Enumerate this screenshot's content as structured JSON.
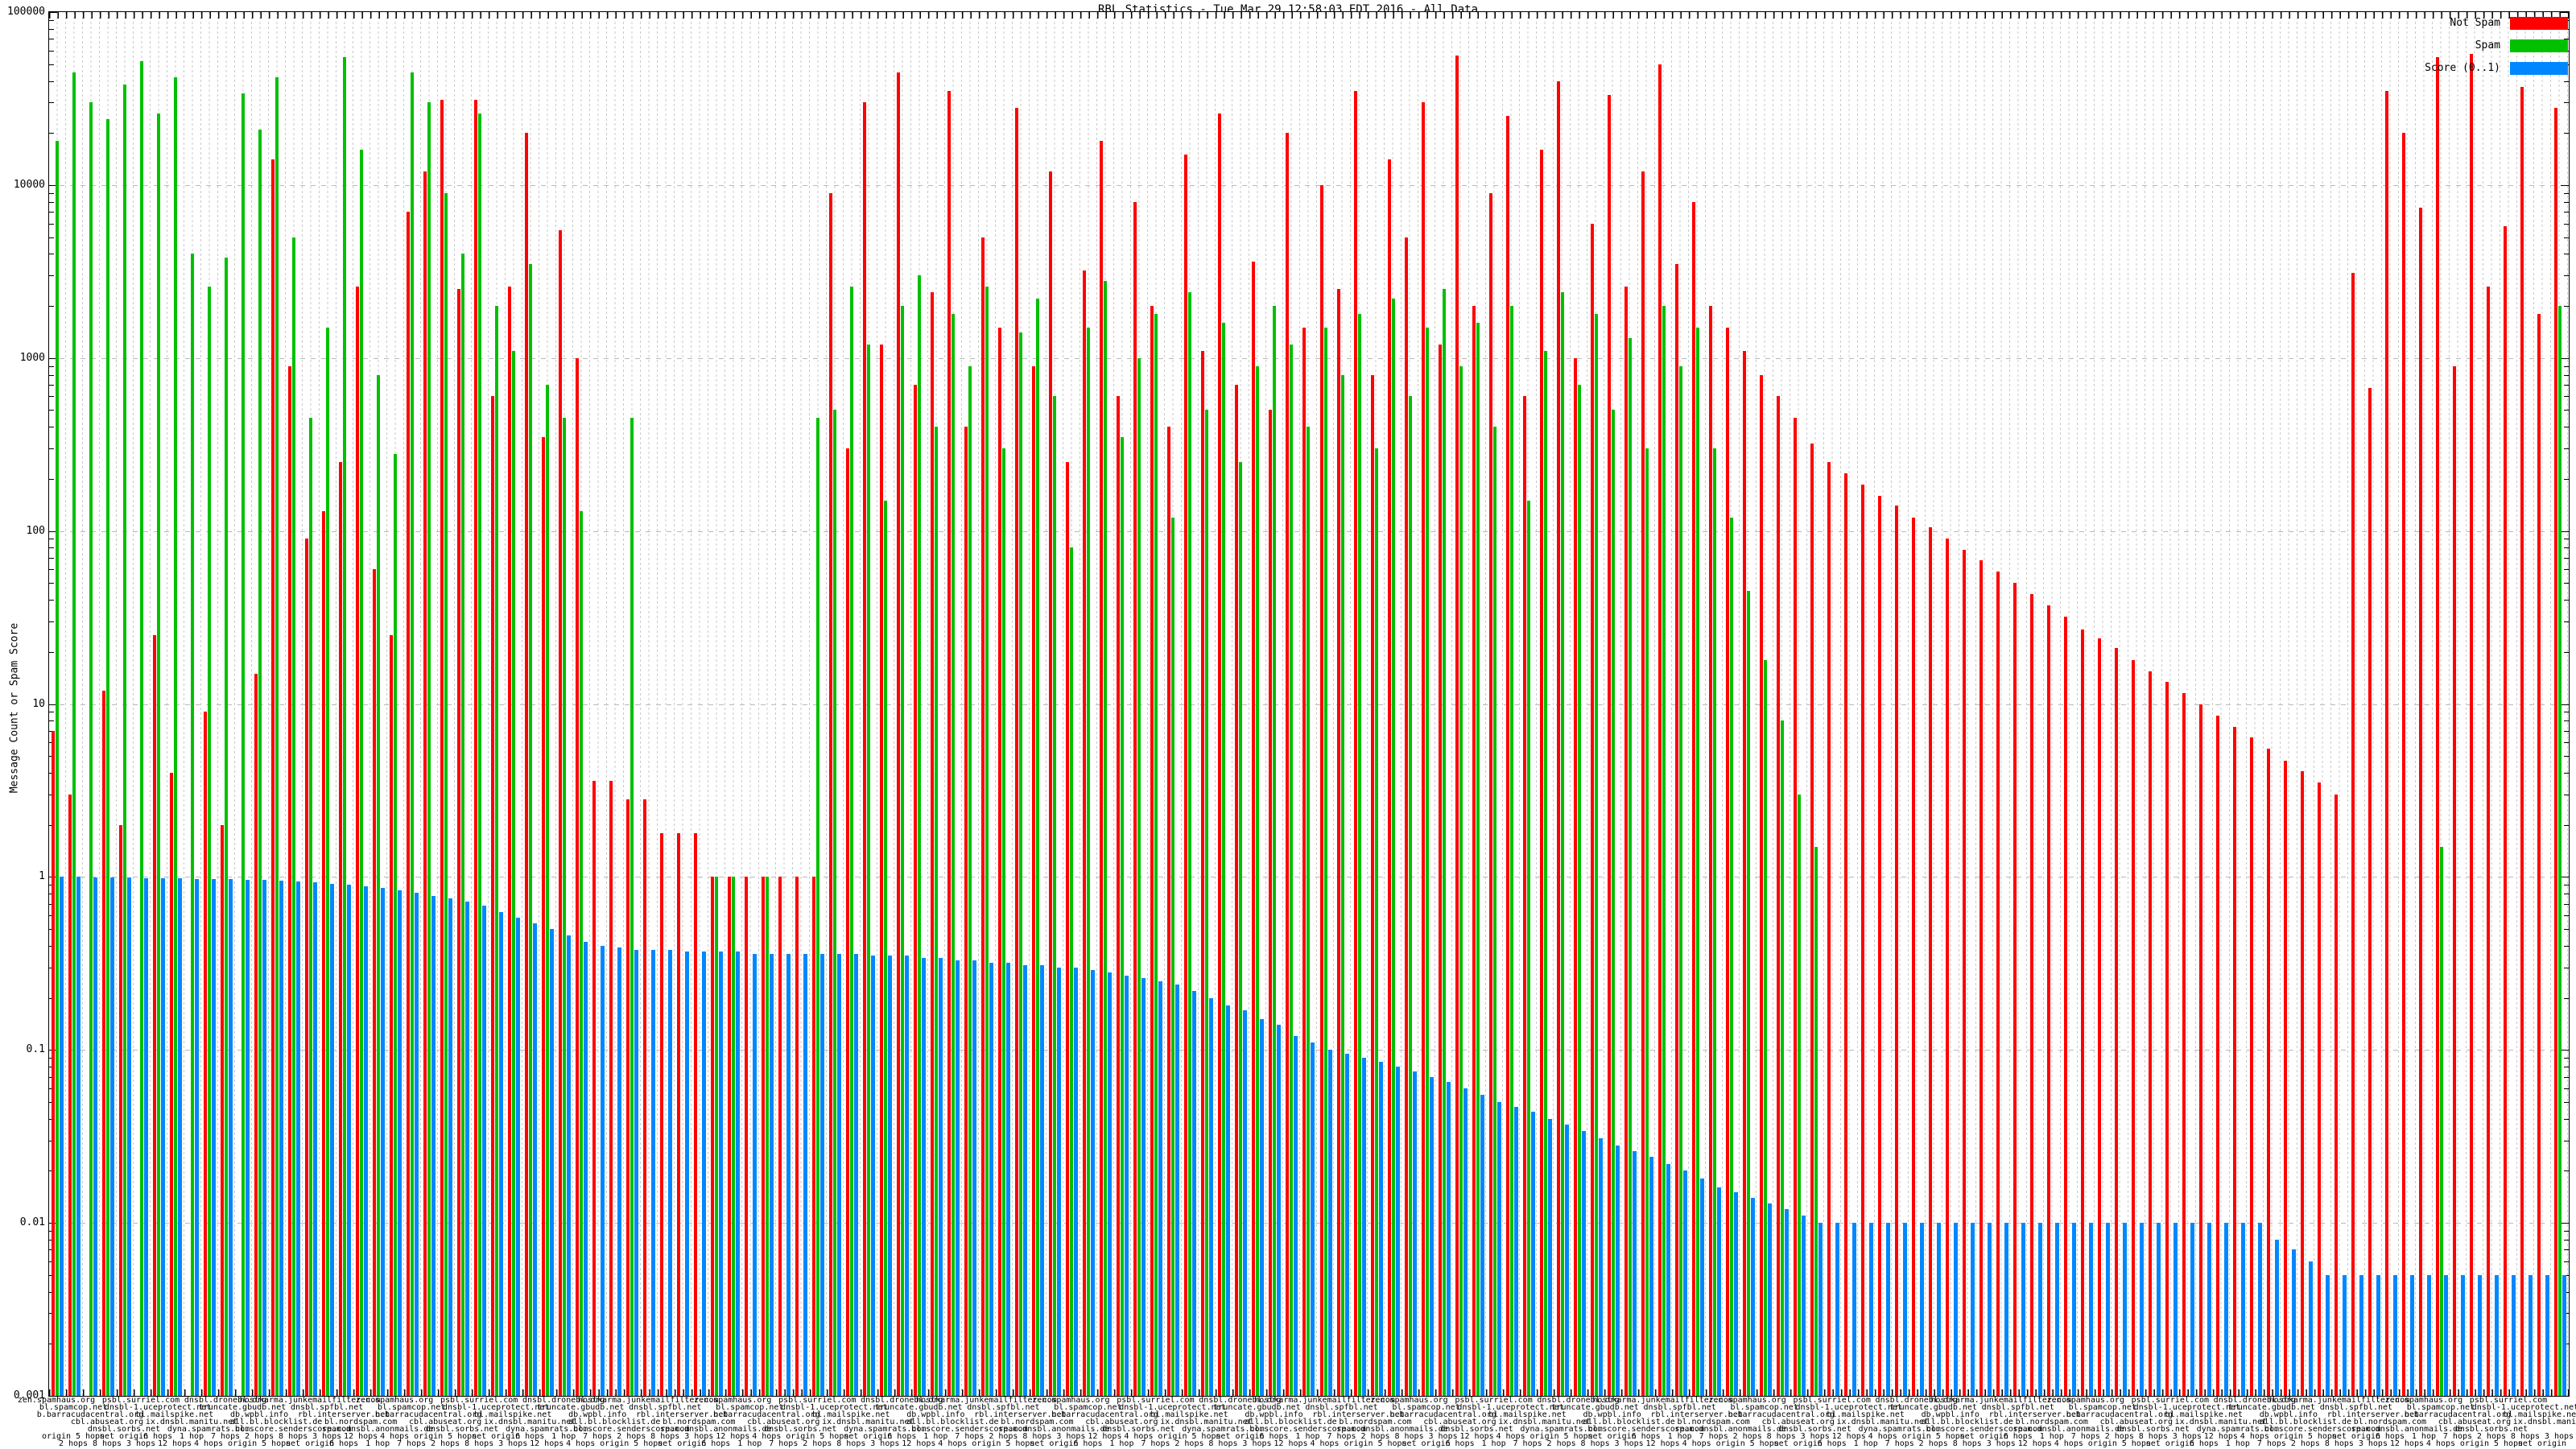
{
  "title": "RBL Statistics - Tue Mar 29 12:58:03 EDT 2016 - All Data",
  "y_axis": {
    "label": "Message Count or Spam Score",
    "ticks": [
      "100000",
      "10000",
      "1000",
      "100",
      "10",
      "1",
      "0.1",
      "0.01",
      "0.001"
    ],
    "tick_values": [
      100000,
      10000,
      1000,
      100,
      10,
      1,
      0.1,
      0.01,
      0.001
    ]
  },
  "legend": [
    {
      "label": "Not Spam",
      "color": "#ff0000"
    },
    {
      "label": "Spam",
      "color": "#00c000"
    },
    {
      "label": "Score (0..1)",
      "color": "#0087ff"
    }
  ],
  "chart_data": {
    "type": "bar",
    "title": "RBL Statistics - Tue Mar 29 12:58:03 EDT 2016 - All Data",
    "ylabel": "Message Count or Spam Score",
    "y_scale": "log",
    "ylim": [
      0.001,
      100000
    ],
    "grid": true,
    "legend_position": "top-right",
    "categories": [
      "zen.spamhaus.org",
      "bl.spamcop.net",
      "b.barracudacentral.org",
      "cbl.abuseat.org",
      "dnsbl.sorbs.net",
      "psbl.surriel.com",
      "dnsbl-1.uceprotect.net",
      "bl.mailspike.net",
      "ix.dnsbl.manitu.net",
      "dyna.spamrats.com",
      "dnsbl.dronebl.org",
      "truncate.gbudb.net",
      "db.wpbl.info",
      "all.bl.blocklist.de",
      "bl.score.senderscore.com",
      "hostkarma.junkemailfilter.com",
      "dnsbl.spfbl.net",
      "rbl.interserver.net",
      "bl.nordspam.com",
      "spam.dnsbl.anonmails.de",
      "zen.spamhaus.org",
      "bl.spamcop.net",
      "b.barracudacentral.org",
      "cbl.abuseat.org",
      "dnsbl.sorbs.net",
      "psbl.surriel.com",
      "dnsbl-1.uceprotect.net",
      "bl.mailspike.net",
      "ix.dnsbl.manitu.net",
      "dyna.spamrats.com",
      "dnsbl.dronebl.org",
      "truncate.gbudb.net",
      "db.wpbl.info",
      "all.bl.blocklist.de",
      "bl.score.senderscore.com",
      "hostkarma.junkemailfilter.com",
      "dnsbl.spfbl.net",
      "rbl.interserver.net",
      "bl.nordspam.com",
      "spam.dnsbl.anonmails.de",
      "zen.spamhaus.org",
      "bl.spamcop.net",
      "b.barracudacentral.org",
      "cbl.abuseat.org",
      "dnsbl.sorbs.net",
      "psbl.surriel.com",
      "dnsbl-1.uceprotect.net",
      "bl.mailspike.net",
      "ix.dnsbl.manitu.net",
      "dyna.spamrats.com",
      "dnsbl.dronebl.org",
      "truncate.gbudb.net",
      "db.wpbl.info",
      "all.bl.blocklist.de",
      "bl.score.senderscore.com",
      "hostkarma.junkemailfilter.com",
      "dnsbl.spfbl.net",
      "rbl.interserver.net",
      "bl.nordspam.com",
      "spam.dnsbl.anonmails.de",
      "zen.spamhaus.org",
      "bl.spamcop.net",
      "b.barracudacentral.org",
      "cbl.abuseat.org",
      "dnsbl.sorbs.net",
      "psbl.surriel.com",
      "dnsbl-1.uceprotect.net",
      "bl.mailspike.net",
      "ix.dnsbl.manitu.net",
      "dyna.spamrats.com",
      "dnsbl.dronebl.org",
      "truncate.gbudb.net",
      "db.wpbl.info",
      "all.bl.blocklist.de",
      "bl.score.senderscore.com",
      "hostkarma.junkemailfilter.com",
      "dnsbl.spfbl.net",
      "rbl.interserver.net",
      "bl.nordspam.com",
      "spam.dnsbl.anonmails.de",
      "zen.spamhaus.org",
      "bl.spamcop.net",
      "b.barracudacentral.org",
      "cbl.abuseat.org",
      "dnsbl.sorbs.net",
      "psbl.surriel.com",
      "dnsbl-1.uceprotect.net",
      "bl.mailspike.net",
      "ix.dnsbl.manitu.net",
      "dyna.spamrats.com",
      "dnsbl.dronebl.org",
      "truncate.gbudb.net",
      "db.wpbl.info",
      "all.bl.blocklist.de",
      "bl.score.senderscore.com",
      "hostkarma.junkemailfilter.com",
      "dnsbl.spfbl.net",
      "rbl.interserver.net",
      "bl.nordspam.com",
      "spam.dnsbl.anonmails.de",
      "zen.spamhaus.org",
      "bl.spamcop.net",
      "b.barracudacentral.org",
      "cbl.abuseat.org",
      "dnsbl.sorbs.net",
      "psbl.surriel.com",
      "dnsbl-1.uceprotect.net",
      "bl.mailspike.net",
      "ix.dnsbl.manitu.net",
      "dyna.spamrats.com",
      "dnsbl.dronebl.org",
      "truncate.gbudb.net",
      "db.wpbl.info",
      "all.bl.blocklist.de",
      "bl.score.senderscore.com",
      "hostkarma.junkemailfilter.com",
      "dnsbl.spfbl.net",
      "rbl.interserver.net",
      "bl.nordspam.com",
      "spam.dnsbl.anonmails.de",
      "zen.spamhaus.org",
      "bl.spamcop.net",
      "b.barracudacentral.org",
      "cbl.abuseat.org",
      "dnsbl.sorbs.net",
      "psbl.surriel.com",
      "dnsbl-1.uceprotect.net",
      "bl.mailspike.net",
      "ix.dnsbl.manitu.net",
      "dyna.spamrats.com",
      "dnsbl.dronebl.org",
      "truncate.gbudb.net",
      "db.wpbl.info",
      "all.bl.blocklist.de",
      "bl.score.senderscore.com",
      "hostkarma.junkemailfilter.com",
      "dnsbl.spfbl.net",
      "rbl.interserver.net",
      "bl.nordspam.com",
      "spam.dnsbl.anonmails.de",
      "zen.spamhaus.org",
      "bl.spamcop.net",
      "b.barracudacentral.org",
      "cbl.abuseat.org",
      "dnsbl.sorbs.net",
      "psbl.surriel.com",
      "dnsbl-1.uceprotect.net",
      "bl.mailspike.net",
      "ix.dnsbl.manitu.net"
    ],
    "hop_qualifiers": [
      "origin",
      "2 hops",
      "5 hops",
      "8 hops",
      "net origin",
      "3 hops",
      "6 hops",
      "12 hops",
      "1 hop",
      "4 hops",
      "7 hops",
      "origin",
      "2 hops",
      "5 hops",
      "8 hops",
      "net origin",
      "3 hops",
      "6 hops",
      "12 hops",
      "1 hop",
      "4 hops",
      "7 hops",
      "origin",
      "2 hops",
      "5 hops",
      "8 hops",
      "net origin",
      "3 hops",
      "6 hops",
      "12 hops",
      "1 hop",
      "4 hops",
      "7 hops",
      "origin",
      "2 hops",
      "5 hops",
      "8 hops",
      "net origin",
      "3 hops",
      "6 hops",
      "12 hops",
      "1 hop",
      "4 hops",
      "7 hops",
      "origin",
      "2 hops",
      "5 hops",
      "8 hops",
      "net origin",
      "3 hops",
      "6 hops",
      "12 hops",
      "1 hop",
      "4 hops",
      "7 hops",
      "origin",
      "2 hops",
      "5 hops",
      "8 hops",
      "net origin",
      "3 hops",
      "6 hops",
      "12 hops",
      "1 hop",
      "4 hops",
      "7 hops",
      "origin",
      "2 hops",
      "5 hops",
      "8 hops",
      "net origin",
      "3 hops",
      "6 hops",
      "12 hops",
      "1 hop",
      "4 hops",
      "7 hops",
      "origin",
      "2 hops",
      "5 hops",
      "8 hops",
      "net origin",
      "3 hops",
      "6 hops",
      "12 hops",
      "1 hop",
      "4 hops",
      "7 hops",
      "origin",
      "2 hops",
      "5 hops",
      "8 hops",
      "net origin",
      "3 hops",
      "6 hops",
      "12 hops",
      "1 hop",
      "4 hops",
      "7 hops",
      "origin",
      "2 hops",
      "5 hops",
      "8 hops",
      "net origin",
      "3 hops",
      "6 hops",
      "12 hops",
      "1 hop",
      "4 hops",
      "7 hops",
      "origin",
      "2 hops",
      "5 hops",
      "8 hops",
      "net origin",
      "3 hops",
      "6 hops",
      "12 hops",
      "1 hop",
      "4 hops",
      "7 hops",
      "origin",
      "2 hops",
      "5 hops",
      "8 hops",
      "net origin",
      "3 hops",
      "6 hops",
      "12 hops",
      "1 hop",
      "4 hops",
      "7 hops",
      "origin",
      "2 hops",
      "5 hops",
      "8 hops",
      "net origin",
      "3 hops",
      "6 hops",
      "12 hops",
      "1 hop",
      "4 hops",
      "7 hops",
      "origin",
      "2 hops",
      "5 hops",
      "8 hops",
      "net origin",
      "3 hops"
    ],
    "series": [
      {
        "name": "Not Spam",
        "color": "#ff0000",
        "values": [
          7,
          3,
          0,
          12,
          2,
          0,
          25,
          4,
          0,
          9,
          2,
          0,
          15,
          14000,
          900,
          90,
          130,
          250,
          2600,
          60,
          25,
          7000,
          12000,
          31000,
          2500,
          31000,
          600,
          2600,
          20000,
          350,
          5500,
          1000,
          3.6,
          3.6,
          2.8,
          2.8,
          1.8,
          1.8,
          1.8,
          1,
          1,
          1,
          1,
          1,
          1,
          1,
          9000,
          300,
          30000,
          1200,
          45000,
          700,
          2400,
          35000,
          400,
          5000,
          1500,
          28000,
          900,
          12000,
          250,
          3200,
          18000,
          600,
          8000,
          2000,
          400,
          15000,
          1100,
          26000,
          700,
          3600,
          500,
          20000,
          1500,
          10000,
          2500,
          35000,
          800,
          14000,
          5000,
          30000,
          1200,
          56000,
          2000,
          9000,
          25000,
          600,
          16000,
          40000,
          1000,
          6000,
          33000,
          2600,
          12000,
          50000,
          3500,
          8000,
          2000,
          1500,
          1100,
          800,
          600,
          450,
          320,
          250,
          215,
          185,
          160,
          140,
          120,
          105,
          90,
          78,
          68,
          58,
          50,
          43,
          37,
          32,
          27,
          24,
          21,
          18,
          15.5,
          13.5,
          11.5,
          10,
          8.6,
          7.4,
          6.4,
          5.5,
          4.7,
          4.1,
          3.5,
          3,
          3100,
          670,
          35000,
          20000,
          7400,
          55000,
          900,
          57000,
          2600,
          5800,
          37000,
          1800,
          28000
        ]
      },
      {
        "name": "Spam",
        "color": "#00c000",
        "values": [
          18000,
          45000,
          30000,
          24000,
          38000,
          52000,
          26000,
          42000,
          4000,
          2600,
          3800,
          34000,
          21000,
          42000,
          5000,
          450,
          1500,
          55000,
          16000,
          800,
          280,
          45000,
          30000,
          9000,
          4000,
          26000,
          2000,
          1100,
          3500,
          700,
          450,
          130,
          0,
          0,
          450,
          0,
          0,
          0,
          0,
          1,
          1,
          0,
          1,
          0,
          0,
          450,
          500,
          2600,
          1200,
          150,
          2000,
          3000,
          400,
          1800,
          900,
          2600,
          300,
          1400,
          2200,
          600,
          80,
          1500,
          2800,
          350,
          1000,
          1800,
          120,
          2400,
          500,
          1600,
          250,
          900,
          2000,
          1200,
          400,
          1500,
          800,
          1800,
          300,
          2200,
          600,
          1500,
          2500,
          900,
          1600,
          400,
          2000,
          150,
          1100,
          2400,
          700,
          1800,
          500,
          1300,
          300,
          2000,
          900,
          1500,
          300,
          120,
          45,
          18,
          8,
          3,
          1.5,
          0,
          0,
          0,
          0,
          0,
          0,
          0,
          0,
          0,
          0,
          0,
          0,
          0,
          0,
          0,
          0,
          0,
          0,
          0,
          0,
          0,
          0,
          0,
          0,
          0,
          0,
          0,
          0,
          0,
          0,
          0,
          0,
          0,
          0,
          0,
          0,
          1.5,
          0,
          0,
          0,
          0,
          0,
          0,
          2000
        ]
      },
      {
        "name": "Score (0..1)",
        "color": "#0087ff",
        "values": [
          1,
          1,
          0.99,
          0.99,
          0.99,
          0.98,
          0.98,
          0.98,
          0.97,
          0.97,
          0.97,
          0.96,
          0.96,
          0.95,
          0.94,
          0.93,
          0.91,
          0.9,
          0.88,
          0.86,
          0.84,
          0.81,
          0.78,
          0.75,
          0.72,
          0.68,
          0.63,
          0.58,
          0.54,
          0.5,
          0.46,
          0.42,
          0.4,
          0.39,
          0.38,
          0.38,
          0.38,
          0.37,
          0.37,
          0.37,
          0.37,
          0.36,
          0.36,
          0.36,
          0.36,
          0.36,
          0.36,
          0.36,
          0.35,
          0.35,
          0.35,
          0.34,
          0.34,
          0.33,
          0.33,
          0.32,
          0.32,
          0.31,
          0.31,
          0.3,
          0.3,
          0.29,
          0.28,
          0.27,
          0.26,
          0.25,
          0.24,
          0.22,
          0.2,
          0.18,
          0.17,
          0.15,
          0.14,
          0.12,
          0.11,
          0.1,
          0.095,
          0.09,
          0.085,
          0.08,
          0.075,
          0.07,
          0.065,
          0.06,
          0.055,
          0.05,
          0.047,
          0.044,
          0.04,
          0.037,
          0.034,
          0.031,
          0.028,
          0.026,
          0.024,
          0.022,
          0.02,
          0.018,
          0.016,
          0.015,
          0.014,
          0.013,
          0.012,
          0.011,
          0.01,
          0.01,
          0.01,
          0.01,
          0.01,
          0.01,
          0.01,
          0.01,
          0.01,
          0.01,
          0.01,
          0.01,
          0.01,
          0.01,
          0.01,
          0.01,
          0.01,
          0.01,
          0.01,
          0.01,
          0.01,
          0.01,
          0.01,
          0.01,
          0.01,
          0.01,
          0.01,
          0.008,
          0.007,
          0.006,
          0.005,
          0.005,
          0.005,
          0.005,
          0.005,
          0.005,
          0.005,
          0.005,
          0.005,
          0.005,
          0.005,
          0.005,
          0.005,
          0.005,
          0.005
        ]
      }
    ]
  }
}
